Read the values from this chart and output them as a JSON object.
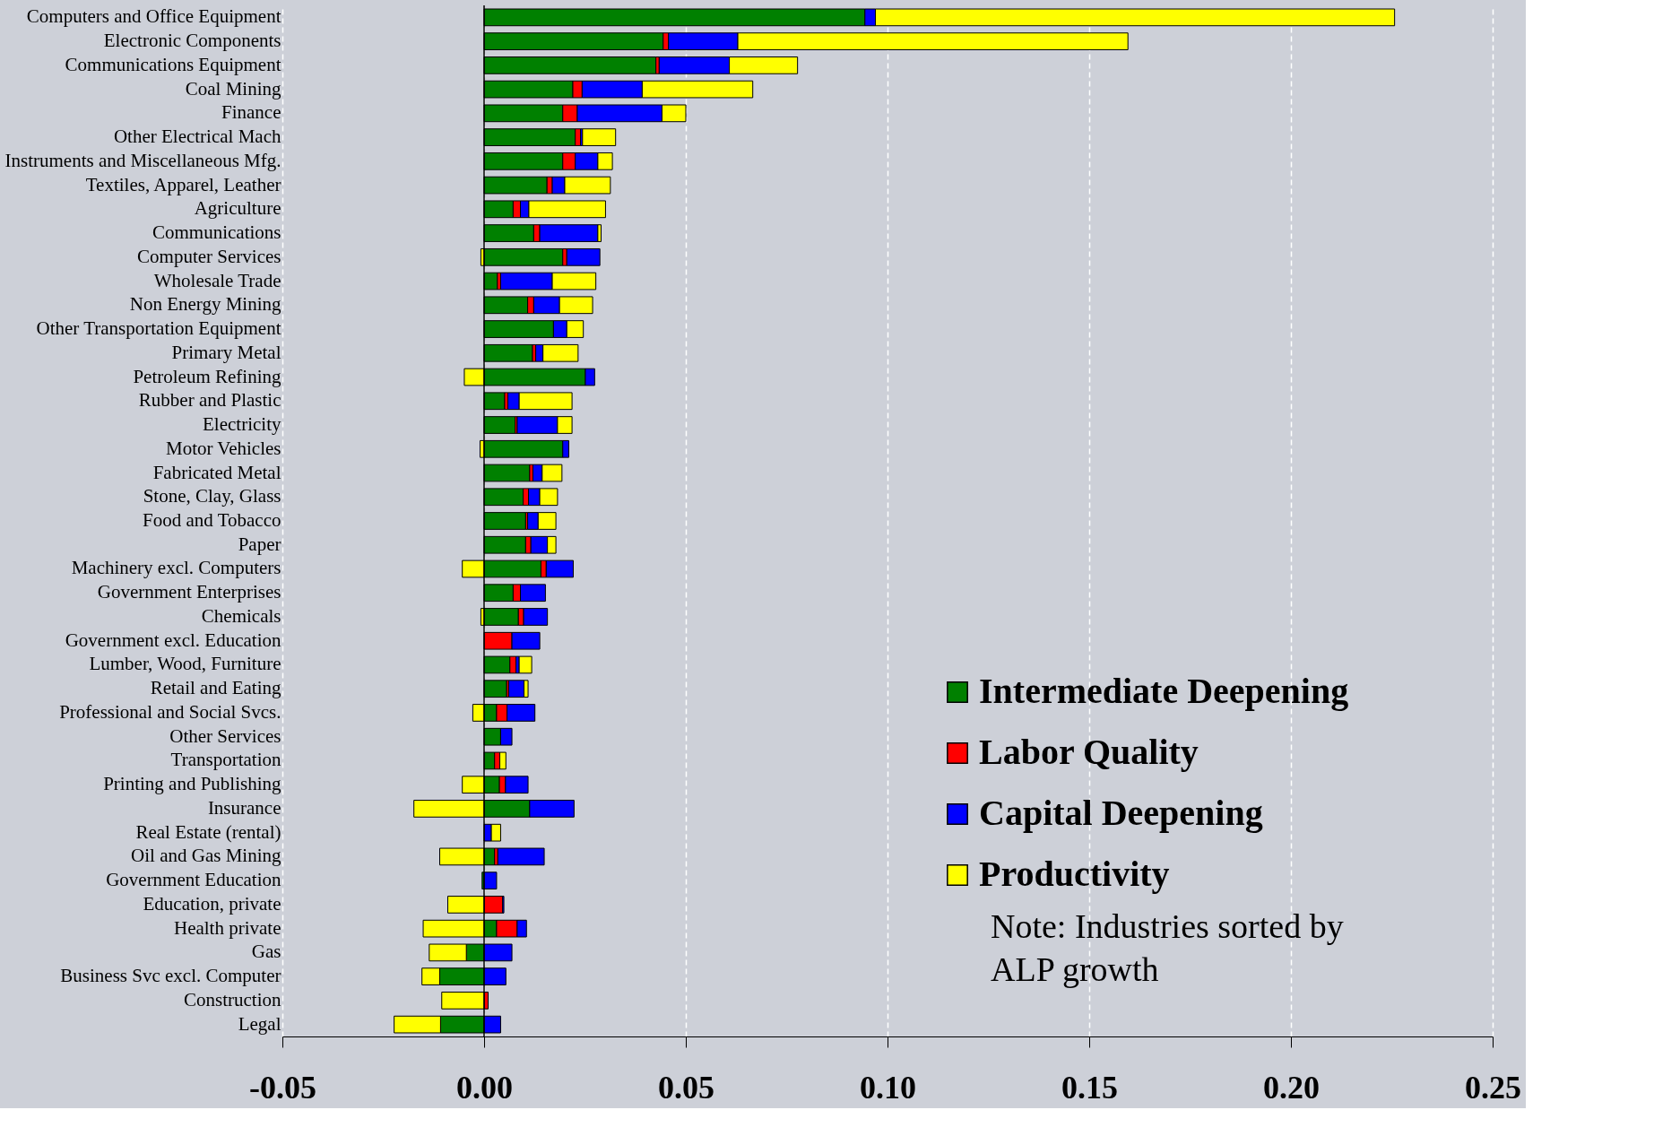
{
  "chart_data": {
    "type": "bar",
    "orientation": "horizontal",
    "stacked": true,
    "categories": [
      "Computers and Office Equipment",
      "Electronic Components",
      "Communications Equipment",
      "Coal Mining",
      "Finance",
      "Other Electrical Mach",
      "Instruments and Miscellaneous Mfg.",
      "Textiles, Apparel, Leather",
      "Agriculture",
      "Communications",
      "Computer Services",
      "Wholesale Trade",
      "Non Energy Mining",
      "Other Transportation Equipment",
      "Primary Metal",
      "Petroleum Refining",
      "Rubber and Plastic",
      "Electricity",
      "Motor Vehicles",
      "Fabricated Metal",
      "Stone, Clay, Glass",
      "Food and Tobacco",
      "Paper",
      "Machinery excl. Computers",
      "Government Enterprises",
      "Chemicals",
      "Government excl. Education",
      "Lumber, Wood, Furniture",
      "Retail and Eating",
      "Professional and Social Svcs.",
      "Other Services",
      "Transportation",
      "Printing and Publishing",
      "Insurance",
      "Real Estate (rental)",
      "Oil and Gas Mining",
      "Government Education",
      "Education, private",
      "Health private",
      "Gas",
      "Business Svc excl. Computer",
      "Construction",
      "Legal"
    ],
    "series": [
      {
        "name": "Intermediate Deepening",
        "color": "#008000",
        "values": [
          0.0944,
          0.0444,
          0.0426,
          0.022,
          0.0195,
          0.0226,
          0.0195,
          0.0156,
          0.0072,
          0.0123,
          0.0195,
          0.0033,
          0.0108,
          0.0172,
          0.012,
          0.0251,
          0.0051,
          0.0077,
          0.0195,
          0.0113,
          0.0097,
          0.0103,
          0.0103,
          0.0141,
          0.0072,
          0.0085,
          null,
          0.0064,
          0.0056,
          0.0031,
          0.0041,
          0.0026,
          0.0038,
          0.0113,
          null,
          0.0026,
          -0.0005,
          null,
          0.0031,
          -0.0044,
          -0.011,
          null,
          -0.0108
        ]
      },
      {
        "name": "Labor Quality",
        "color": "#ff0000",
        "values": [
          null,
          0.0013,
          0.0008,
          0.0023,
          0.0036,
          0.0013,
          0.0031,
          0.0013,
          0.0018,
          0.0015,
          0.001,
          0.0008,
          0.0015,
          null,
          0.0008,
          null,
          0.0008,
          0.0005,
          null,
          0.0008,
          0.0013,
          0.0005,
          0.0013,
          0.0013,
          0.0018,
          0.0013,
          0.0069,
          0.0015,
          0.0005,
          0.0026,
          null,
          0.0013,
          0.0015,
          null,
          null,
          0.0008,
          null,
          0.0046,
          0.0051,
          null,
          null,
          0.001,
          null
        ]
      },
      {
        "name": "Capital Deepening",
        "color": "#0000ff",
        "values": [
          0.0026,
          0.0172,
          0.0174,
          0.0149,
          0.021,
          0.0005,
          0.0056,
          0.0031,
          0.0021,
          0.0144,
          0.0082,
          0.0128,
          0.0064,
          0.0033,
          0.0018,
          0.0023,
          0.0028,
          0.01,
          0.0015,
          0.0023,
          0.0028,
          0.0026,
          0.0041,
          0.0067,
          0.0062,
          0.0059,
          0.0069,
          0.0008,
          0.0038,
          0.0069,
          0.0028,
          null,
          0.0056,
          0.011,
          0.0018,
          0.0115,
          0.0031,
          0.0003,
          0.0023,
          0.0069,
          0.0054,
          null,
          0.0041
        ]
      },
      {
        "name": "Productivity",
        "color": "#ffff00",
        "values": [
          0.1287,
          0.0967,
          0.0169,
          0.0274,
          0.0059,
          0.0082,
          0.0036,
          0.0113,
          0.019,
          0.0008,
          -0.0008,
          0.0108,
          0.0082,
          0.0041,
          0.0087,
          -0.0049,
          0.0131,
          0.0036,
          -0.001,
          0.0049,
          0.0044,
          0.0044,
          0.0021,
          -0.0054,
          null,
          -0.0008,
          null,
          0.0031,
          0.001,
          -0.0028,
          null,
          0.0015,
          -0.0054,
          -0.0174,
          0.0023,
          -0.011,
          null,
          -0.009,
          -0.0151,
          -0.0092,
          -0.0044,
          -0.0105,
          -0.0115
        ]
      }
    ],
    "xlim": [
      -0.05,
      0.25
    ],
    "xticks": [
      -0.05,
      {
        "value": 0,
        "label": "0.00"
      },
      0.05,
      {
        "value": 0.1,
        "label": "0.10"
      },
      0.15,
      {
        "value": 0.2,
        "label": "0.20"
      },
      0.25
    ],
    "grid": "x",
    "legend": "bottom right",
    "ref_lines": [
      {
        "axis": "x",
        "value": 0,
        "color": "#000000"
      }
    ],
    "annotations": [
      "Note: Industries sorted by ALP growth"
    ]
  }
}
